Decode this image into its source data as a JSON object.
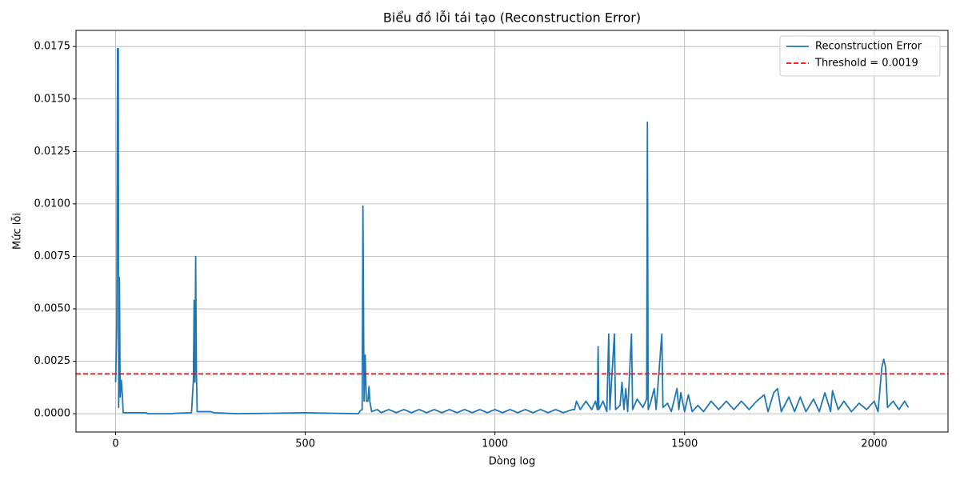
{
  "chart_data": {
    "type": "line",
    "title": "Biểu đồ lỗi tái tạo (Reconstruction Error)",
    "xlabel": "Dòng log",
    "ylabel": "Mức lỗi",
    "x": [
      0,
      3,
      5,
      7,
      8,
      10,
      12,
      15,
      18,
      20,
      80,
      85,
      150,
      155,
      200,
      205,
      207,
      209,
      211,
      213,
      215,
      250,
      260,
      320,
      400,
      500,
      580,
      640,
      645,
      650,
      652,
      655,
      658,
      661,
      665,
      668,
      670,
      675,
      690,
      700,
      720,
      740,
      760,
      780,
      800,
      820,
      840,
      860,
      880,
      900,
      920,
      940,
      960,
      980,
      1000,
      1020,
      1040,
      1060,
      1080,
      1100,
      1120,
      1140,
      1160,
      1180,
      1205,
      1210,
      1215,
      1225,
      1240,
      1255,
      1265,
      1270,
      1272,
      1274,
      1285,
      1295,
      1300,
      1303,
      1315,
      1318,
      1330,
      1335,
      1340,
      1345,
      1350,
      1360,
      1363,
      1375,
      1390,
      1400,
      1402,
      1404,
      1410,
      1420,
      1425,
      1440,
      1443,
      1455,
      1465,
      1480,
      1485,
      1490,
      1500,
      1510,
      1520,
      1535,
      1550,
      1570,
      1590,
      1610,
      1630,
      1650,
      1670,
      1690,
      1710,
      1720,
      1735,
      1745,
      1755,
      1775,
      1790,
      1805,
      1820,
      1840,
      1855,
      1870,
      1885,
      1890,
      1905,
      1920,
      1940,
      1960,
      1980,
      2000,
      2010,
      2020,
      2025,
      2030,
      2035,
      2050,
      2065,
      2080,
      2090
    ],
    "series": [
      {
        "name": "Reconstruction Error",
        "color": "#1f77b4",
        "values": [
          0.0015,
          0.0042,
          0.0174,
          0.0174,
          0.0003,
          0.0065,
          0.0008,
          0.0016,
          0.0008,
          5e-05,
          5e-05,
          0,
          0,
          2e-05,
          5e-05,
          0.0016,
          0.0054,
          0.0015,
          0.0075,
          0.0021,
          0.0001,
          0.0001,
          5e-05,
          0,
          2e-05,
          5e-05,
          2e-05,
          0,
          0.00015,
          0.0002,
          0.0099,
          0.0006,
          0.0028,
          0.0006,
          0.0006,
          0.0013,
          0.0006,
          0.0001,
          0.0002,
          5e-05,
          0.0002,
          5e-05,
          0.0002,
          5e-05,
          0.0002,
          5e-05,
          0.0002,
          5e-05,
          0.0002,
          5e-05,
          0.0002,
          5e-05,
          0.0002,
          5e-05,
          0.0002,
          5e-05,
          0.0002,
          5e-05,
          0.0002,
          5e-05,
          0.0002,
          5e-05,
          0.0002,
          5e-05,
          0.0002,
          0.0002,
          0.0006,
          0.0002,
          0.0006,
          0.0002,
          0.0006,
          0.0002,
          0.0032,
          0.0002,
          0.0006,
          0.0001,
          0.0038,
          0.0002,
          0.0038,
          0.0002,
          0.0004,
          0.0015,
          0.0002,
          0.0012,
          0.0001,
          0.0038,
          0.0002,
          0.0007,
          0.0003,
          0.0007,
          0.0139,
          0.0002,
          0.0005,
          0.0012,
          0.0002,
          0.0038,
          0.0003,
          0.0005,
          0.0001,
          0.0012,
          0.0002,
          0.001,
          0.0001,
          0.0009,
          0.0001,
          0.0004,
          0.0001,
          0.0006,
          0.0002,
          0.0006,
          0.0002,
          0.0006,
          0.0002,
          0.0006,
          0.0009,
          0.0001,
          0.001,
          0.0012,
          0.0001,
          0.0008,
          0.0001,
          0.0008,
          0.0001,
          0.0007,
          0.0001,
          0.001,
          0.0001,
          0.0011,
          0.0002,
          0.0006,
          0.0001,
          0.0005,
          0.0002,
          0.0006,
          0.0001,
          0.0022,
          0.0026,
          0.0022,
          0.0003,
          0.0006,
          0.0002,
          0.0006,
          0.0003
        ]
      }
    ],
    "threshold": {
      "name": "Threshold = 0.0019",
      "value": 0.0019,
      "color": "#ff0000"
    },
    "xlim": [
      -104.5,
      2194.5
    ],
    "ylim": [
      -0.00087,
      0.01827
    ],
    "xticks": [
      0,
      500,
      1000,
      1500,
      2000
    ],
    "yticks": [
      {
        "value": 0,
        "label": "0.0000"
      },
      {
        "value": 0.0025,
        "label": "0.0025"
      },
      {
        "value": 0.005,
        "label": "0.0050"
      },
      {
        "value": 0.0075,
        "label": "0.0075"
      },
      {
        "value": 0.01,
        "label": "0.0100"
      },
      {
        "value": 0.0125,
        "label": "0.0125"
      },
      {
        "value": 0.015,
        "label": "0.0150"
      },
      {
        "value": 0.0175,
        "label": "0.0175"
      }
    ],
    "grid": true,
    "legend": "upper right"
  }
}
